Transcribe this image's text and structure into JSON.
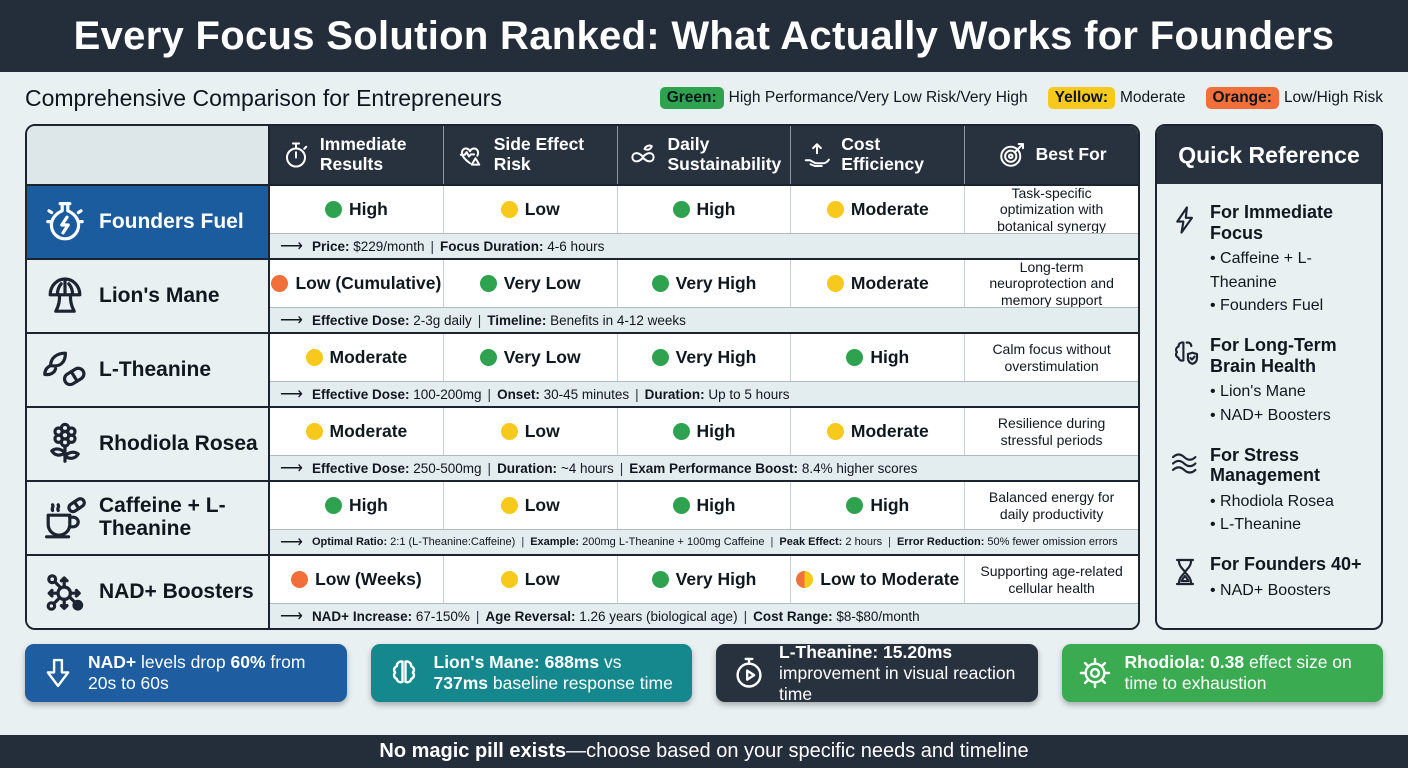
{
  "page": {
    "title": "Every Focus Solution Ranked: What Actually Works for Founders",
    "subtitle": "Comprehensive Comparison for Entrepreneurs",
    "footer_bold": "No magic pill exists",
    "footer_rest": "—choose based on your specific needs and timeline"
  },
  "colors": {
    "green": "#2fa24f",
    "yellow": "#f6c91c",
    "orange": "#f1703a",
    "founders_blue": "#1b5c9f",
    "card_blue": "#1d5da0",
    "card_teal": "#15888e",
    "card_dark": "#28323f",
    "card_green": "#3aab51"
  },
  "legend": [
    {
      "chip": "Green:",
      "color_key": "green",
      "text": "High Performance/Very Low Risk/Very High"
    },
    {
      "chip": "Yellow:",
      "color_key": "yellow",
      "text": "Moderate"
    },
    {
      "chip": "Orange:",
      "color_key": "orange",
      "text": "Low/High Risk"
    }
  ],
  "table": {
    "columns": [
      {
        "icon": "stopwatch-icon",
        "label": "Immediate Results"
      },
      {
        "icon": "heartbeat-warning-icon",
        "label": "Side Effect Risk"
      },
      {
        "icon": "infinity-leaf-icon",
        "label": "Daily Sustainability"
      },
      {
        "icon": "hand-arrow-up-icon",
        "label": "Cost Efficiency"
      },
      {
        "icon": "target-icon",
        "label": "Best For"
      }
    ],
    "rows": [
      {
        "name": "Founders Fuel",
        "icon": "potion-flask-icon",
        "highlighted": true,
        "ratings": [
          {
            "dot": "green",
            "text": "High"
          },
          {
            "dot": "yellow",
            "text": "Low"
          },
          {
            "dot": "green",
            "text": "High"
          },
          {
            "dot": "yellow",
            "text": "Moderate"
          }
        ],
        "best_for": "Task-specific optimization with botanical synergy",
        "details": [
          {
            "label": "Price:",
            "value": "$229/month"
          },
          {
            "label": "Focus Duration:",
            "value": "4-6 hours"
          }
        ]
      },
      {
        "name": "Lion's Mane",
        "icon": "mushroom-icon",
        "highlighted": false,
        "ratings": [
          {
            "dot": "orange",
            "text": "Low (Cumulative)"
          },
          {
            "dot": "green",
            "text": "Very Low"
          },
          {
            "dot": "green",
            "text": "Very High"
          },
          {
            "dot": "yellow",
            "text": "Moderate"
          }
        ],
        "best_for": "Long-term neuroprotection and memory support",
        "details": [
          {
            "label": "Effective Dose:",
            "value": "2-3g daily"
          },
          {
            "label": "Timeline:",
            "value": "Benefits in 4-12 weeks"
          }
        ]
      },
      {
        "name": "L-Theanine",
        "icon": "leaf-pill-icon",
        "highlighted": false,
        "ratings": [
          {
            "dot": "yellow",
            "text": "Moderate"
          },
          {
            "dot": "green",
            "text": "Very Low"
          },
          {
            "dot": "green",
            "text": "Very High"
          },
          {
            "dot": "green",
            "text": "High"
          }
        ],
        "best_for": "Calm focus without overstimulation",
        "details": [
          {
            "label": "Effective Dose:",
            "value": "100-200mg"
          },
          {
            "label": "Onset:",
            "value": "30-45 minutes"
          },
          {
            "label": "Duration:",
            "value": "Up to 5 hours"
          }
        ]
      },
      {
        "name": "Rhodiola Rosea",
        "icon": "flower-icon",
        "highlighted": false,
        "ratings": [
          {
            "dot": "yellow",
            "text": "Moderate"
          },
          {
            "dot": "yellow",
            "text": "Low"
          },
          {
            "dot": "green",
            "text": "High"
          },
          {
            "dot": "yellow",
            "text": "Moderate"
          }
        ],
        "best_for": "Resilience during stressful periods",
        "details": [
          {
            "label": "Effective Dose:",
            "value": "250-500mg"
          },
          {
            "label": "Duration:",
            "value": "~4 hours"
          },
          {
            "label": "Exam Performance Boost:",
            "value": "8.4% higher scores"
          }
        ]
      },
      {
        "name": "Caffeine + L-Theanine",
        "icon": "coffee-pill-icon",
        "highlighted": false,
        "ratings": [
          {
            "dot": "green",
            "text": "High"
          },
          {
            "dot": "yellow",
            "text": "Low"
          },
          {
            "dot": "green",
            "text": "High"
          },
          {
            "dot": "green",
            "text": "High"
          }
        ],
        "best_for": "Balanced energy for daily productivity",
        "details": [
          {
            "label": "Optimal Ratio:",
            "value": "2:1 (L-Theanine:Caffeine)"
          },
          {
            "label": "Example:",
            "value": "200mg L-Theanine + 100mg Caffeine"
          },
          {
            "label": "Peak Effect:",
            "value": "2 hours"
          },
          {
            "label": "Error Reduction:",
            "value": "50% fewer omission errors"
          }
        ]
      },
      {
        "name": "NAD+ Boosters",
        "icon": "molecule-icon",
        "highlighted": false,
        "ratings": [
          {
            "dot": "orange",
            "text": "Low (Weeks)"
          },
          {
            "dot": "yellow",
            "text": "Low"
          },
          {
            "dot": "green",
            "text": "Very High"
          },
          {
            "dot": "orange-yellow",
            "text": "Low to Moderate"
          }
        ],
        "best_for": "Supporting age-related cellular health",
        "details": [
          {
            "label": "NAD+ Increase:",
            "value": "67-150%"
          },
          {
            "label": "Age Reversal:",
            "value": "1.26 years (biological age)"
          },
          {
            "label": "Cost Range:",
            "value": "$8-$80/month"
          }
        ]
      }
    ]
  },
  "quick_reference": {
    "title": "Quick Reference",
    "sections": [
      {
        "icon": "lightning-icon",
        "title": "For Immediate Focus",
        "items": [
          "Caffeine + L-Theanine",
          "Founders Fuel"
        ]
      },
      {
        "icon": "brain-shield-icon",
        "title": "For Long-Term Brain Health",
        "items": [
          "Lion's Mane",
          "NAD+ Boosters"
        ]
      },
      {
        "icon": "waves-icon",
        "title": "For Stress Management",
        "items": [
          "Rhodiola Rosea",
          "L-Theanine"
        ]
      },
      {
        "icon": "hourglass-icon",
        "title": "For Founders 40+",
        "items": [
          "NAD+ Boosters"
        ]
      }
    ]
  },
  "stat_cards": [
    {
      "icon": "down-arrow-icon",
      "color_key": "card_blue",
      "parts": [
        {
          "t": "NAD+",
          "b": true
        },
        {
          "t": " levels drop ",
          "b": false
        },
        {
          "t": "60%",
          "b": true
        },
        {
          "t": " from 20s to 60s",
          "b": false
        }
      ]
    },
    {
      "icon": "brain-icon",
      "color_key": "card_teal",
      "parts": [
        {
          "t": "Lion's Mane: 688ms",
          "b": true
        },
        {
          "t": " vs ",
          "b": false
        },
        {
          "t": "737ms",
          "b": true
        },
        {
          "t": " baseline response time",
          "b": false
        }
      ]
    },
    {
      "icon": "timer-icon",
      "color_key": "card_dark",
      "parts": [
        {
          "t": "L-Theanine: 15.20ms",
          "b": true
        },
        {
          "t": " improvement in visual reaction time",
          "b": false
        }
      ]
    },
    {
      "icon": "gear-icon",
      "color_key": "card_green",
      "parts": [
        {
          "t": "Rhodiola: 0.38",
          "b": true
        },
        {
          "t": " effect size on time to exhaustion",
          "b": false
        }
      ]
    }
  ]
}
